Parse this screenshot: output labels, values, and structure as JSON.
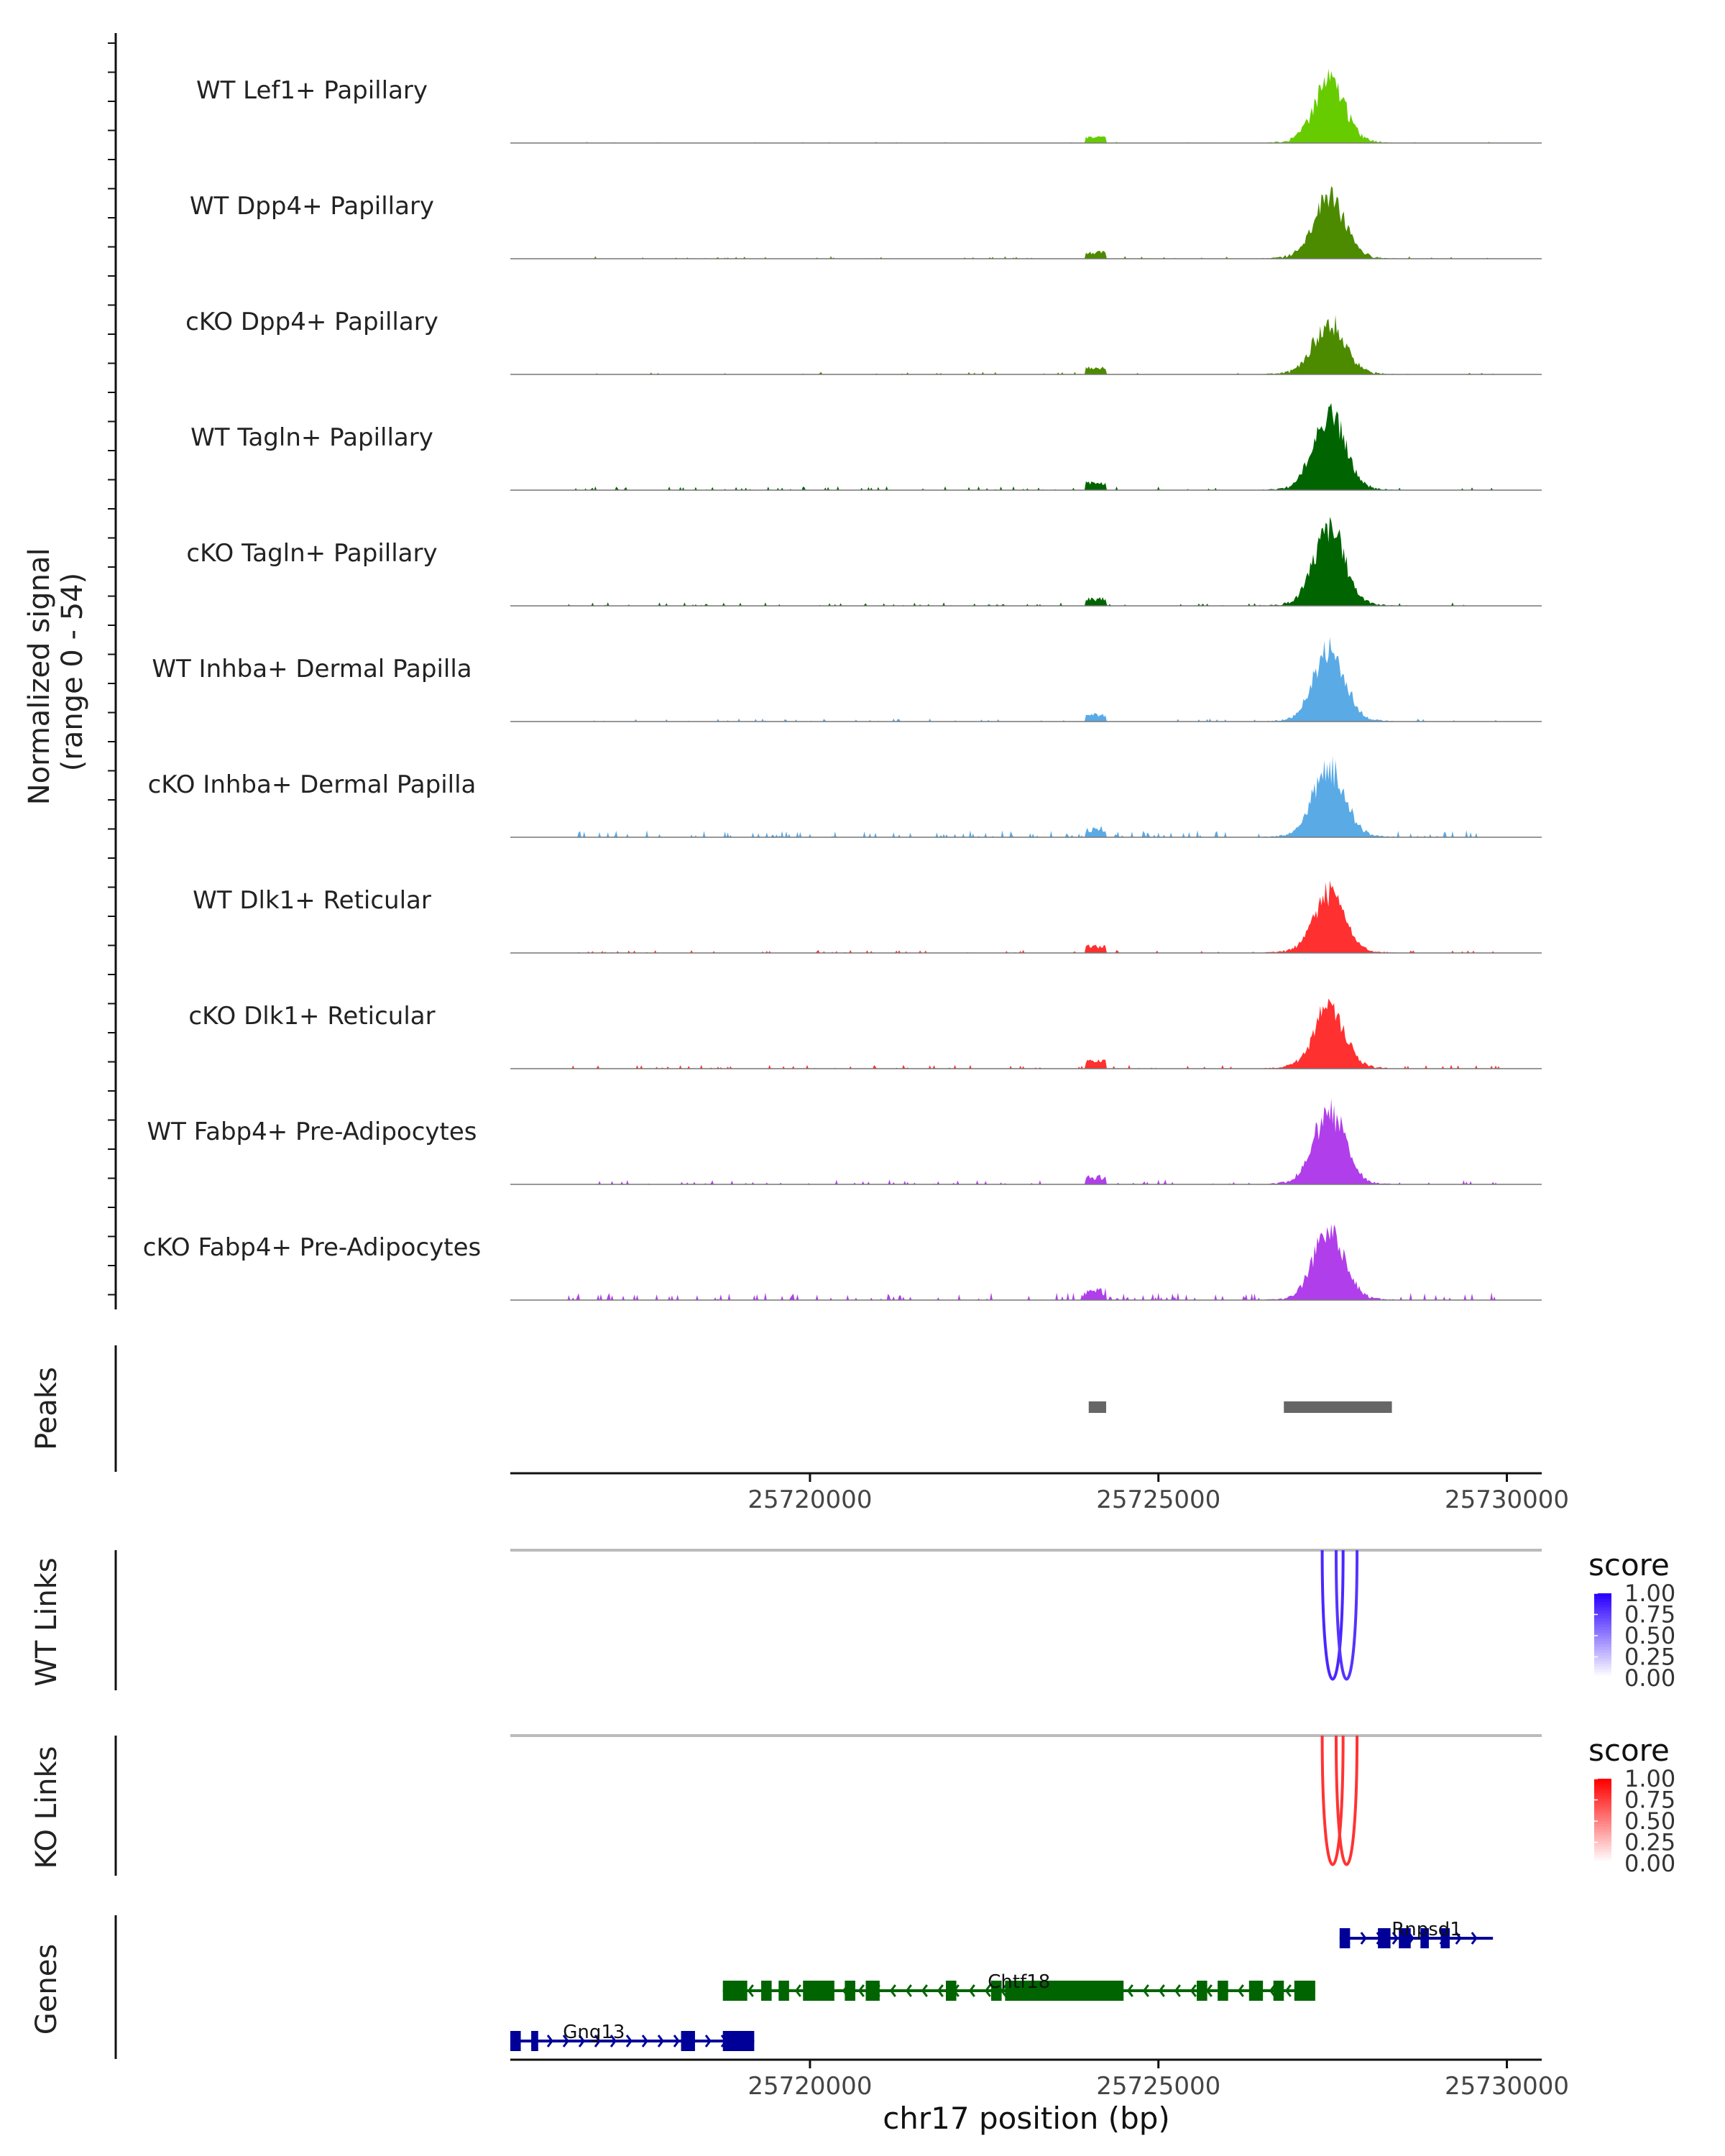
{
  "chart_data": {
    "type": "area",
    "title": "",
    "region": "chr17",
    "x_range": [
      25715700,
      25730500
    ],
    "coverage": {
      "ylabel_line1": "Normalized signal",
      "ylabel_line2": "(range 0 - 54)",
      "ylim": [
        0,
        54
      ],
      "main_peak": {
        "start": 25726900,
        "end": 25728000
      },
      "tracks": [
        {
          "label": "WT Lef1+ Papillary",
          "color": "#66CC00",
          "peak": 50,
          "noise": 0.15,
          "seed": 3
        },
        {
          "label": "WT Dpp4+ Papillary",
          "color": "#4C8A00",
          "peak": 50,
          "noise": 0.3,
          "seed": 7
        },
        {
          "label": "cKO Dpp4+ Papillary",
          "color": "#4C8A00",
          "peak": 40,
          "noise": 0.3,
          "seed": 11
        },
        {
          "label": "WT Tagln+ Papillary",
          "color": "#006400",
          "peak": 62,
          "noise": 0.45,
          "seed": 13
        },
        {
          "label": "cKO Tagln+ Papillary",
          "color": "#006400",
          "peak": 62,
          "noise": 0.4,
          "seed": 17
        },
        {
          "label": "WT Inhba+ Dermal Papilla",
          "color": "#5AAAE6",
          "peak": 56,
          "noise": 0.35,
          "seed": 19
        },
        {
          "label": "cKO Inhba+ Dermal Papilla",
          "color": "#5AAAE6",
          "peak": 56,
          "noise": 0.8,
          "seed": 23
        },
        {
          "label": "WT Dlk1+ Reticular",
          "color": "#FF3030",
          "peak": 48,
          "noise": 0.35,
          "seed": 29
        },
        {
          "label": "cKO Dlk1+ Reticular",
          "color": "#FF3030",
          "peak": 48,
          "noise": 0.45,
          "seed": 31
        },
        {
          "label": "WT Fabp4+ Pre-Adipocytes",
          "color": "#B03EEA",
          "peak": 60,
          "noise": 0.55,
          "seed": 37
        },
        {
          "label": "cKO Fabp4+ Pre-Adipocytes",
          "color": "#B03EEA",
          "peak": 56,
          "noise": 0.9,
          "seed": 41
        }
      ]
    },
    "peaks": {
      "label": "Peaks",
      "color": "#666666",
      "regions": [
        {
          "start": 25724000,
          "end": 25724250
        },
        {
          "start": 25726800,
          "end": 25728350
        }
      ]
    },
    "axis": {
      "ticks": [
        25720000,
        25725000,
        25730000
      ],
      "tick_labels": [
        "25720000",
        "25725000",
        "25730000"
      ],
      "xlabel": "chr17 position (bp)"
    },
    "links": [
      {
        "label": "WT Links",
        "legend_title": "score",
        "legend_ticks": [
          "1.00",
          "0.75",
          "0.50",
          "0.25",
          "0.00"
        ],
        "color_high": "#2B00FF",
        "color_low": "#FFFFFF",
        "arcs": [
          {
            "start": 25727350,
            "end": 25727650,
            "score": 0.85
          },
          {
            "start": 25727550,
            "end": 25727850,
            "score": 0.8
          }
        ]
      },
      {
        "label": "KO Links",
        "legend_title": "score",
        "legend_ticks": [
          "1.00",
          "0.75",
          "0.50",
          "0.25",
          "0.00"
        ],
        "color_high": "#FF0000",
        "color_low": "#FFFFFF",
        "arcs": [
          {
            "start": 25727350,
            "end": 25727650,
            "score": 0.8
          },
          {
            "start": 25727550,
            "end": 25727850,
            "score": 0.8
          }
        ]
      }
    ],
    "genes": {
      "label": "Genes",
      "items": [
        {
          "name": "Rnpsd1",
          "strand": "+",
          "color": "#000099",
          "start": 25727600,
          "end": 25729800,
          "row": 0,
          "label_at": 25728850,
          "exons": [
            [
              25727600,
              25727750
            ],
            [
              25728150,
              25728330
            ],
            [
              25728450,
              25728620
            ],
            [
              25728760,
              25728880
            ],
            [
              25729050,
              25729180
            ]
          ]
        },
        {
          "name": "Chtf18",
          "strand": "-",
          "color": "#006400",
          "start": 25718750,
          "end": 25727250,
          "row": 1,
          "label_at": 25723000,
          "exons": [
            [
              25718750,
              25719100
            ],
            [
              25719300,
              25719450
            ],
            [
              25719550,
              25719700
            ],
            [
              25719900,
              25720350
            ],
            [
              25720500,
              25720650
            ],
            [
              25720800,
              25721000
            ],
            [
              25721950,
              25722100
            ],
            [
              25722600,
              25722750
            ],
            [
              25722800,
              25724500
            ],
            [
              25725550,
              25725700
            ],
            [
              25725850,
              25726000
            ],
            [
              25726300,
              25726500
            ],
            [
              25726650,
              25726800
            ],
            [
              25726950,
              25727250
            ]
          ]
        },
        {
          "name": "Gng13",
          "strand": "+",
          "color": "#000099",
          "start": 25715700,
          "end": 25719200,
          "row": 2,
          "label_at": 25716900,
          "exons": [
            [
              25715700,
              25715850
            ],
            [
              25716000,
              25716100
            ],
            [
              25718150,
              25718350
            ],
            [
              25718750,
              25719200
            ]
          ]
        }
      ]
    }
  }
}
